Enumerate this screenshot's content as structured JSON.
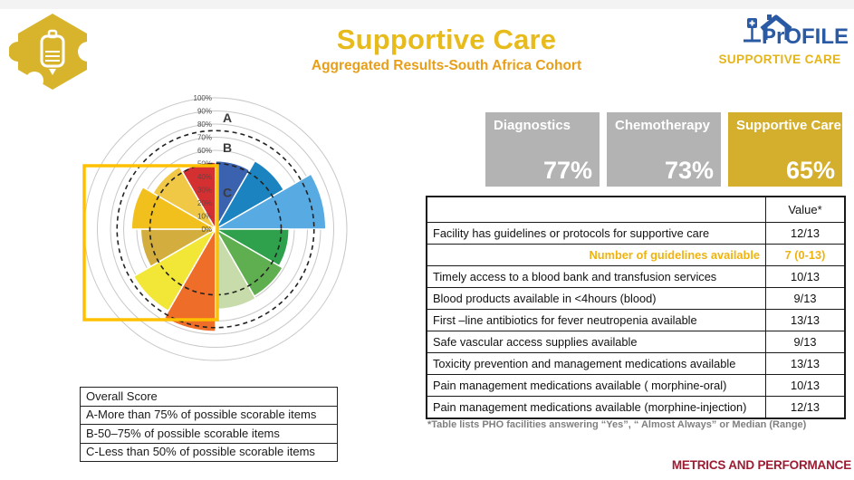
{
  "header": {
    "title": "Supportive Care",
    "subtitle": "Aggregated Results-South Africa Cohort",
    "logo_text": "PrOFILE",
    "logo_subtext": "SUPPORTIVE CARE"
  },
  "chart_data": {
    "type": "polar_bar",
    "description": "12 equal 30-degree sectors, radius = percent score, rings every 10%",
    "tick_labels": [
      "0%",
      "10%",
      "20%",
      "30%",
      "40%",
      "50%",
      "60%",
      "70%",
      "80%",
      "90%",
      "100%"
    ],
    "rings_pct": [
      10,
      20,
      30,
      40,
      50,
      60,
      70,
      80,
      90,
      100
    ],
    "guide_circles_pct": [
      50,
      75
    ],
    "zone_labels": [
      {
        "label": "A",
        "pct": 85
      },
      {
        "label": "B",
        "pct": 62
      },
      {
        "label": "C",
        "pct": 28
      }
    ],
    "segments": [
      {
        "value": 52,
        "color": "#3a62ae"
      },
      {
        "value": 60,
        "color": "#1b84c0"
      },
      {
        "value": 84,
        "color": "#58aae2"
      },
      {
        "value": 56,
        "color": "#2fa14c"
      },
      {
        "value": 59,
        "color": "#5fae50"
      },
      {
        "value": 61,
        "color": "#c7dcaa"
      },
      {
        "value": 78,
        "color": "#ee6d29"
      },
      {
        "value": 72,
        "color": "#f2e636"
      },
      {
        "value": 57,
        "color": "#d3ae3e"
      },
      {
        "value": 64,
        "color": "#f2c01d"
      },
      {
        "value": 55,
        "color": "#f0c846"
      },
      {
        "value": 51,
        "color": "#d43032"
      }
    ],
    "grid_color": "#c8c8c8",
    "guide_color": "#222222",
    "highlight_box_color": "#ffc000"
  },
  "score_cards": [
    {
      "label": "Diagnostics",
      "value": "77%",
      "bg": "#b3b3b3"
    },
    {
      "label": "Chemotherapy",
      "value": "73%",
      "bg": "#b3b3b3"
    },
    {
      "label": "Supportive Care",
      "value": "65%",
      "bg": "#d4ae2d"
    }
  ],
  "metrics_table": {
    "value_header": "Value*",
    "rows": [
      {
        "label": "Facility has guidelines or protocols for supportive care",
        "value": "12/13",
        "highlight": false
      },
      {
        "label": "Number of guidelines available",
        "value": "7 (0-13)",
        "highlight": true
      },
      {
        "label": "Timely access to a blood bank and transfusion services",
        "value": "10/13",
        "highlight": false
      },
      {
        "label": "Blood products available in <4hours (blood)",
        "value": "9/13",
        "highlight": false
      },
      {
        "label": "First –line antibiotics for fever neutropenia available",
        "value": "13/13",
        "highlight": false
      },
      {
        "label": "Safe vascular access supplies available",
        "value": "9/13",
        "highlight": false
      },
      {
        "label": "Toxicity prevention and management medications available",
        "value": "13/13",
        "highlight": false
      },
      {
        "label": "Pain management medications available ( morphine-oral)",
        "value": "10/13",
        "highlight": false
      },
      {
        "label": "Pain management medications available (morphine-injection)",
        "value": "12/13",
        "highlight": false
      }
    ],
    "footnote": "*Table lists PHO facilities answering “Yes”, “ Almost Always” or Median (Range)"
  },
  "legend_box": {
    "title": "Overall Score",
    "rows": [
      "A-More than 75% of possible scorable items",
      "B-50–75% of possible scorable items",
      "C-Less than 50% of possible scorable items"
    ]
  },
  "footer": {
    "brand": "METRICS AND PERFORMANCE"
  },
  "colors": {
    "title_gold": "#e8bb1c",
    "subtitle_gold": "#e79f1a",
    "logo_blue": "#2b5aa5",
    "logo_gold": "#e3b51b",
    "card_gray": "#b3b3b3",
    "card_gold": "#d4ae2d",
    "table_highlight_gold": "#efb310",
    "brand_maroon": "#9e1b32",
    "puzzle_gold": "#d8b42c"
  }
}
